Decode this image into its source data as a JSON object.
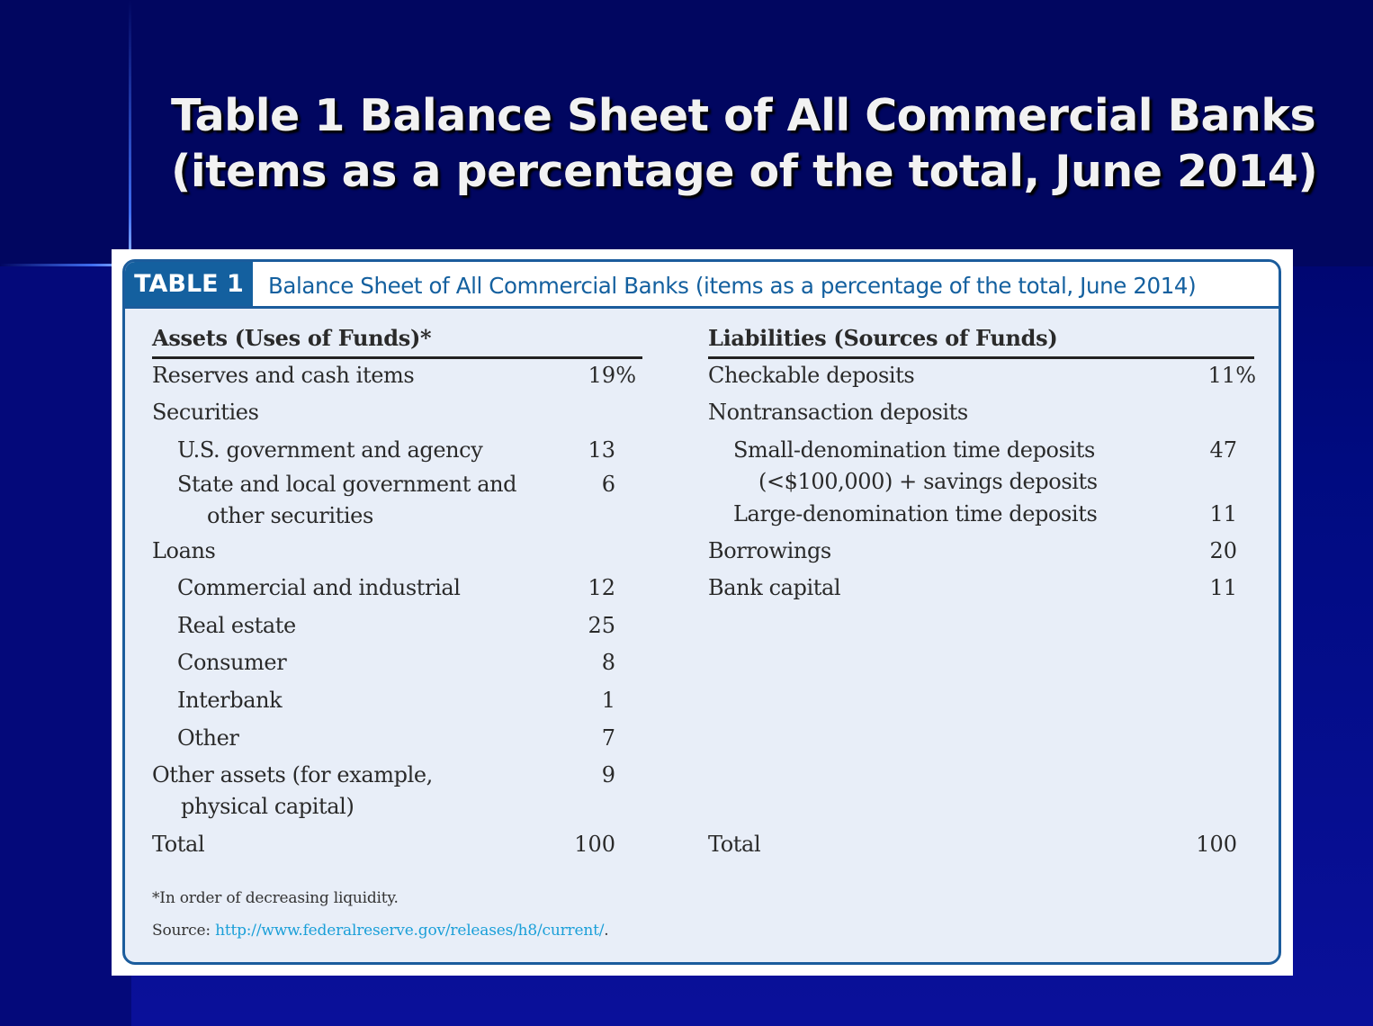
{
  "slide": {
    "title_line1": "Table 1 Balance Sheet of All Commercial Banks",
    "title_line2": "(items as a percentage of the total, June 2014)"
  },
  "table": {
    "tag": "TABLE 1",
    "title": "Balance Sheet of All Commercial Banks (items as a percentage of the total, June 2014)",
    "assets": {
      "header": "Assets (Uses of Funds)*",
      "rows": [
        {
          "label": "Reserves and cash items",
          "value": "19%"
        },
        {
          "label": "Securities",
          "value": ""
        },
        {
          "label": "U.S. government and agency",
          "value": "13"
        },
        {
          "label": "State and local government and",
          "label2": "other securities",
          "value": "6"
        },
        {
          "label": "Loans",
          "value": ""
        },
        {
          "label": "Commercial and industrial",
          "value": "12"
        },
        {
          "label": "Real estate",
          "value": "25"
        },
        {
          "label": "Consumer",
          "value": "8"
        },
        {
          "label": "Interbank",
          "value": "1"
        },
        {
          "label": "Other",
          "value": "7"
        },
        {
          "label": "Other assets (for example,",
          "label2": "physical capital)",
          "value": "9"
        },
        {
          "label": "Total",
          "value": "100"
        }
      ]
    },
    "liabilities": {
      "header": "Liabilities (Sources of Funds)",
      "rows": [
        {
          "label": "Checkable deposits",
          "value": "11%"
        },
        {
          "label": "Nontransaction deposits",
          "value": ""
        },
        {
          "label": "Small-denomination time deposits",
          "label2": "(<$100,000) + savings deposits",
          "value": "47"
        },
        {
          "label": "Large-denomination time deposits",
          "value": "11"
        },
        {
          "label": "Borrowings",
          "value": "20"
        },
        {
          "label": "Bank capital",
          "value": "11"
        },
        {
          "label": "Total",
          "value": "100"
        }
      ]
    },
    "footnote": "*In order of decreasing liquidity.",
    "source_label": "Source: ",
    "source_url": "http://www.federalreserve.gov/releases/h8/current/",
    "source_end": "."
  }
}
